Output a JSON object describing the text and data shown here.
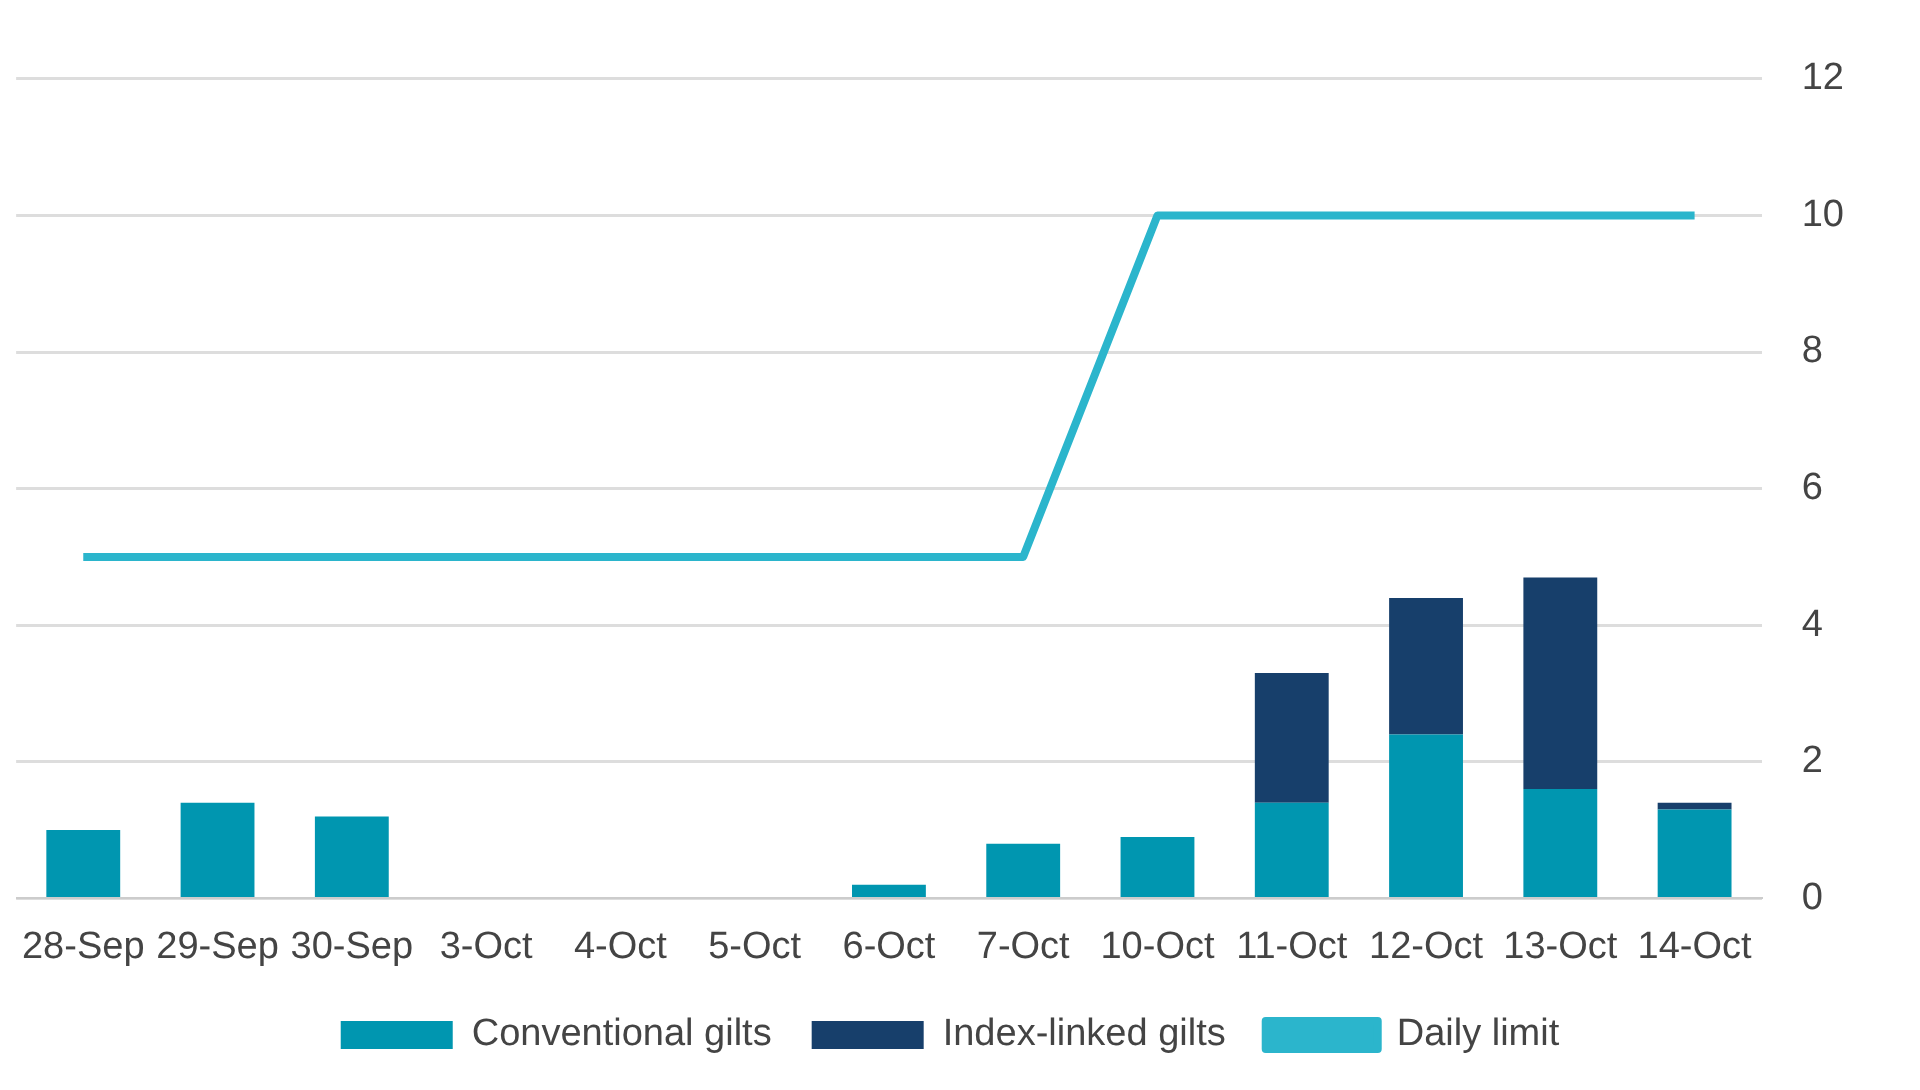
{
  "chart_data": {
    "type": "bar",
    "stacked": true,
    "categories": [
      "28-Sep",
      "29-Sep",
      "30-Sep",
      "3-Oct",
      "4-Oct",
      "5-Oct",
      "6-Oct",
      "7-Oct",
      "10-Oct",
      "11-Oct",
      "12-Oct",
      "13-Oct",
      "14-Oct"
    ],
    "series": [
      {
        "name": "Conventional gilts",
        "color": "#0096b0",
        "values": [
          1.0,
          1.4,
          1.2,
          0,
          0,
          0,
          0.2,
          0.8,
          0.9,
          1.4,
          2.4,
          1.6,
          1.3
        ]
      },
      {
        "name": "Index-linked gilts",
        "color": "#173f6b",
        "values": [
          0,
          0,
          0,
          0,
          0,
          0,
          0,
          0,
          0,
          1.9,
          2.0,
          3.1,
          0.1
        ]
      },
      {
        "name": "Daily limit",
        "type": "line",
        "color": "#2bb5cc",
        "values": [
          5,
          5,
          5,
          5,
          5,
          5,
          5,
          5,
          10,
          10,
          10,
          10,
          10
        ]
      }
    ],
    "ylim": [
      0,
      12
    ],
    "yticks": [
      0,
      2,
      4,
      6,
      8,
      10,
      12
    ],
    "grid": "y",
    "legend": "bottom",
    "marker": "none"
  }
}
